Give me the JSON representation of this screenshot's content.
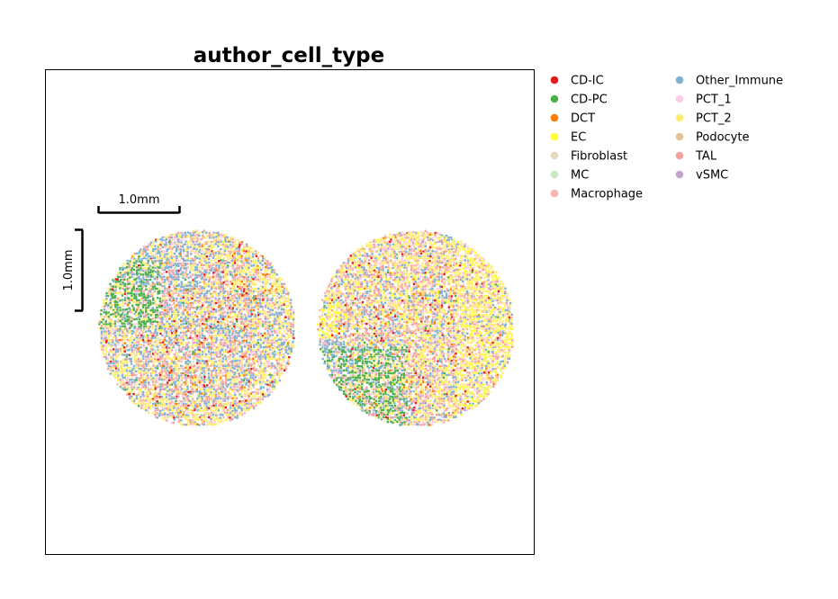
{
  "chart_data": {
    "type": "scatter",
    "title": "author_cell_type",
    "xlabel": "",
    "ylabel": "",
    "grid": false,
    "legend_placement": "right, outside plot, 2 columns",
    "scalebar": {
      "horizontal_label": "1.0mm",
      "vertical_label": "1.0mm"
    },
    "categories": [
      {
        "name": "CD-IC",
        "color": "#e41a1c"
      },
      {
        "name": "CD-PC",
        "color": "#4daf4a"
      },
      {
        "name": "DCT",
        "color": "#ff7f00"
      },
      {
        "name": "EC",
        "color": "#ffff33"
      },
      {
        "name": "Fibroblast",
        "color": "#e5d8bd"
      },
      {
        "name": "MC",
        "color": "#ccebc5"
      },
      {
        "name": "Macrophage",
        "color": "#fbb4ae"
      },
      {
        "name": "Other_Immune",
        "color": "#80b1d3"
      },
      {
        "name": "PCT_1",
        "color": "#fccde5"
      },
      {
        "name": "PCT_2",
        "color": "#ffed6f"
      },
      {
        "name": "Podocyte",
        "color": "#e5c494"
      },
      {
        "name": "TAL",
        "color": "#f4a09c"
      },
      {
        "name": "vSMC",
        "color": "#c2a5cf"
      }
    ],
    "sections": [
      {
        "name": "left-tissue-section"
      },
      {
        "name": "right-tissue-section"
      }
    ]
  }
}
